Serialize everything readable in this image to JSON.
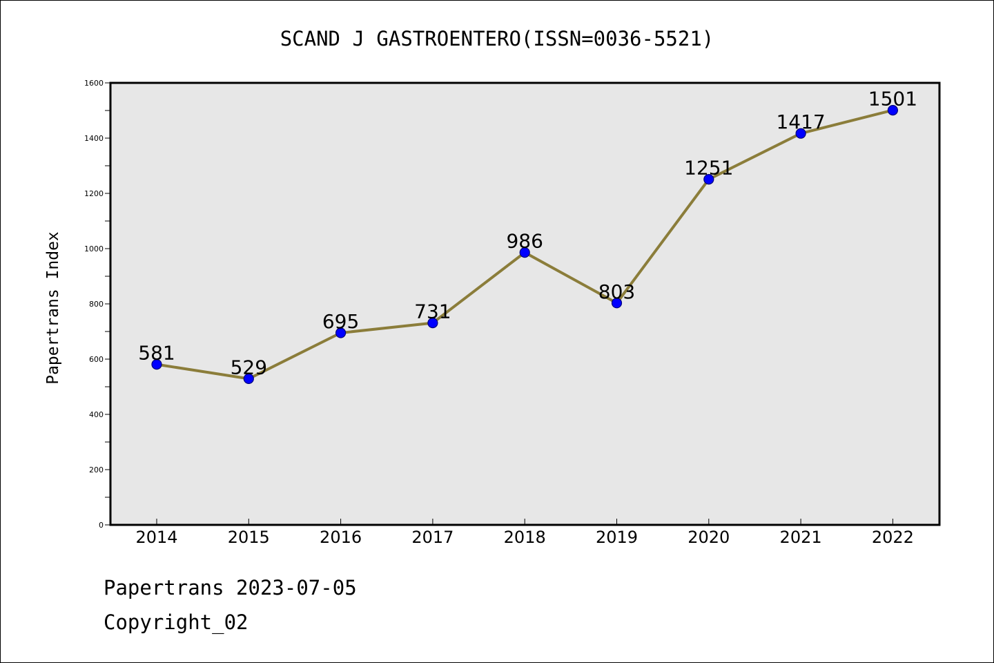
{
  "chart_data": {
    "type": "line",
    "title": "SCAND J GASTROENTERO(ISSN=0036-5521)",
    "ylabel": "Papertrans Index",
    "xlabel": "",
    "categories": [
      "2014",
      "2015",
      "2016",
      "2017",
      "2018",
      "2019",
      "2020",
      "2021",
      "2022"
    ],
    "series": [
      {
        "values": [
          581,
          529,
          695,
          731,
          986,
          803,
          1251,
          1417,
          1501
        ]
      }
    ],
    "ylim": [
      0,
      1600
    ],
    "yticks": [
      0,
      200,
      400,
      600,
      800,
      1000,
      1200,
      1400,
      1600
    ],
    "grid": false,
    "data_labels": true,
    "colors": {
      "line": "#8b7d3a",
      "marker": "#0000ff",
      "plot_background": "#e7e7e7"
    }
  },
  "footer": {
    "line1": "Papertrans 2023-07-05",
    "line2": "Copyright_02"
  }
}
